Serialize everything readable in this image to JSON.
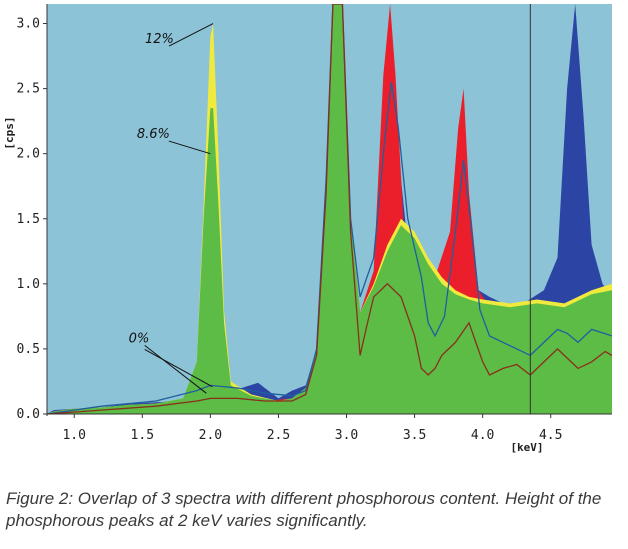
{
  "chart_data": {
    "type": "area",
    "x_unit_label": "[keV]",
    "y_unit_label": "[cps]",
    "xlim": [
      0.8,
      4.95
    ],
    "ylim": [
      0.0,
      3.15
    ],
    "x_ticks": [
      "1.0",
      "1.5",
      "2.0",
      "2.5",
      "3.0",
      "3.5",
      "4.0",
      "4.5"
    ],
    "y_ticks": [
      "0.0",
      "0.5",
      "1.0",
      "1.5",
      "2.0",
      "2.5",
      "3.0"
    ],
    "cursor_x": 4.35,
    "background_color": "#8dc3d6",
    "reference_areas": [
      {
        "color": "#2c44a4",
        "points": [
          [
            0.8,
            0.0
          ],
          [
            0.85,
            0.03
          ],
          [
            1.0,
            0.04
          ],
          [
            1.2,
            0.05
          ],
          [
            1.4,
            0.08
          ],
          [
            1.6,
            0.09
          ],
          [
            1.8,
            0.1
          ],
          [
            1.95,
            0.16
          ],
          [
            2.0,
            0.2
          ],
          [
            2.2,
            0.19
          ],
          [
            2.35,
            0.24
          ],
          [
            2.5,
            0.12
          ],
          [
            2.6,
            0.18
          ],
          [
            2.7,
            0.22
          ],
          [
            2.78,
            0.5
          ],
          [
            2.85,
            1.8
          ],
          [
            2.9,
            3.15
          ],
          [
            2.97,
            3.15
          ],
          [
            3.03,
            1.5
          ],
          [
            3.1,
            0.78
          ],
          [
            3.2,
            0.95
          ],
          [
            3.28,
            1.9
          ],
          [
            3.33,
            2.5
          ],
          [
            3.38,
            2.0
          ],
          [
            3.45,
            1.3
          ],
          [
            3.55,
            1.1
          ],
          [
            3.65,
            1.0
          ],
          [
            3.75,
            1.15
          ],
          [
            3.82,
            2.0
          ],
          [
            3.86,
            2.2
          ],
          [
            3.9,
            1.6
          ],
          [
            3.97,
            0.95
          ],
          [
            4.05,
            0.9
          ],
          [
            4.15,
            0.85
          ],
          [
            4.3,
            0.85
          ],
          [
            4.45,
            0.95
          ],
          [
            4.55,
            1.2
          ],
          [
            4.62,
            2.5
          ],
          [
            4.68,
            3.15
          ],
          [
            4.74,
            2.3
          ],
          [
            4.8,
            1.3
          ],
          [
            4.88,
            1.0
          ],
          [
            4.95,
            0.9
          ]
        ]
      },
      {
        "color": "#ea1f2b",
        "points": [
          [
            0.8,
            0.0
          ],
          [
            0.85,
            0.02
          ],
          [
            1.0,
            0.04
          ],
          [
            1.2,
            0.05
          ],
          [
            1.4,
            0.07
          ],
          [
            1.6,
            0.08
          ],
          [
            1.8,
            0.1
          ],
          [
            1.95,
            0.15
          ],
          [
            2.0,
            0.18
          ],
          [
            2.2,
            0.18
          ],
          [
            2.4,
            0.1
          ],
          [
            2.6,
            0.12
          ],
          [
            2.7,
            0.2
          ],
          [
            2.78,
            0.5
          ],
          [
            2.85,
            1.8
          ],
          [
            2.9,
            3.15
          ],
          [
            2.97,
            3.15
          ],
          [
            3.03,
            1.5
          ],
          [
            3.1,
            0.78
          ],
          [
            3.2,
            1.1
          ],
          [
            3.27,
            2.6
          ],
          [
            3.32,
            3.15
          ],
          [
            3.36,
            2.6
          ],
          [
            3.42,
            1.45
          ],
          [
            3.55,
            1.15
          ],
          [
            3.65,
            1.05
          ],
          [
            3.76,
            1.4
          ],
          [
            3.82,
            2.2
          ],
          [
            3.86,
            2.5
          ],
          [
            3.9,
            1.7
          ],
          [
            3.97,
            0.95
          ],
          [
            4.05,
            0.82
          ],
          [
            4.2,
            0.8
          ],
          [
            4.4,
            0.82
          ],
          [
            4.6,
            0.85
          ],
          [
            4.8,
            0.88
          ],
          [
            4.95,
            0.9
          ]
        ]
      }
    ],
    "series": [
      {
        "name": "12%",
        "color": "#f0ea3e",
        "points": [
          [
            0.8,
            0.0
          ],
          [
            0.85,
            0.02
          ],
          [
            1.0,
            0.04
          ],
          [
            1.2,
            0.05
          ],
          [
            1.4,
            0.07
          ],
          [
            1.6,
            0.08
          ],
          [
            1.8,
            0.12
          ],
          [
            1.9,
            0.4
          ],
          [
            1.95,
            1.6
          ],
          [
            2.0,
            2.9
          ],
          [
            2.02,
            3.0
          ],
          [
            2.06,
            2.0
          ],
          [
            2.1,
            0.8
          ],
          [
            2.15,
            0.25
          ],
          [
            2.3,
            0.15
          ],
          [
            2.5,
            0.1
          ],
          [
            2.6,
            0.12
          ],
          [
            2.7,
            0.2
          ],
          [
            2.78,
            0.5
          ],
          [
            2.85,
            1.8
          ],
          [
            2.9,
            3.15
          ],
          [
            2.97,
            3.15
          ],
          [
            3.03,
            1.5
          ],
          [
            3.1,
            0.78
          ],
          [
            3.2,
            1.0
          ],
          [
            3.3,
            1.3
          ],
          [
            3.4,
            1.5
          ],
          [
            3.5,
            1.4
          ],
          [
            3.6,
            1.2
          ],
          [
            3.7,
            1.05
          ],
          [
            3.8,
            0.95
          ],
          [
            3.9,
            0.9
          ],
          [
            4.0,
            0.88
          ],
          [
            4.2,
            0.85
          ],
          [
            4.4,
            0.88
          ],
          [
            4.6,
            0.85
          ],
          [
            4.8,
            0.95
          ],
          [
            4.95,
            1.0
          ]
        ]
      },
      {
        "name": "8.6%",
        "color": "#5cbc46",
        "points": [
          [
            0.8,
            0.0
          ],
          [
            0.85,
            0.02
          ],
          [
            1.0,
            0.04
          ],
          [
            1.2,
            0.05
          ],
          [
            1.4,
            0.07
          ],
          [
            1.6,
            0.08
          ],
          [
            1.8,
            0.12
          ],
          [
            1.9,
            0.4
          ],
          [
            1.95,
            1.5
          ],
          [
            2.0,
            2.35
          ],
          [
            2.02,
            2.35
          ],
          [
            2.06,
            1.6
          ],
          [
            2.1,
            0.7
          ],
          [
            2.15,
            0.22
          ],
          [
            2.3,
            0.14
          ],
          [
            2.5,
            0.1
          ],
          [
            2.6,
            0.12
          ],
          [
            2.7,
            0.2
          ],
          [
            2.78,
            0.5
          ],
          [
            2.85,
            1.8
          ],
          [
            2.9,
            3.15
          ],
          [
            2.97,
            3.15
          ],
          [
            3.03,
            1.5
          ],
          [
            3.1,
            0.78
          ],
          [
            3.2,
            0.98
          ],
          [
            3.3,
            1.25
          ],
          [
            3.4,
            1.45
          ],
          [
            3.5,
            1.35
          ],
          [
            3.6,
            1.15
          ],
          [
            3.7,
            1.0
          ],
          [
            3.8,
            0.92
          ],
          [
            3.9,
            0.88
          ],
          [
            4.0,
            0.85
          ],
          [
            4.2,
            0.82
          ],
          [
            4.4,
            0.85
          ],
          [
            4.6,
            0.82
          ],
          [
            4.8,
            0.92
          ],
          [
            4.95,
            0.95
          ]
        ]
      }
    ],
    "lines": [
      {
        "color": "#1f5fa0",
        "points": [
          [
            0.8,
            0.0
          ],
          [
            1.2,
            0.06
          ],
          [
            1.6,
            0.1
          ],
          [
            1.9,
            0.18
          ],
          [
            2.0,
            0.22
          ],
          [
            2.2,
            0.2
          ],
          [
            2.4,
            0.16
          ],
          [
            2.6,
            0.14
          ],
          [
            2.7,
            0.18
          ],
          [
            2.78,
            0.5
          ],
          [
            2.85,
            1.8
          ],
          [
            2.9,
            3.15
          ],
          [
            2.97,
            3.15
          ],
          [
            3.03,
            1.5
          ],
          [
            3.1,
            0.9
          ],
          [
            3.2,
            1.2
          ],
          [
            3.28,
            2.1
          ],
          [
            3.33,
            2.55
          ],
          [
            3.38,
            2.2
          ],
          [
            3.45,
            1.5
          ],
          [
            3.55,
            1.05
          ],
          [
            3.6,
            0.7
          ],
          [
            3.65,
            0.6
          ],
          [
            3.72,
            0.75
          ],
          [
            3.8,
            1.4
          ],
          [
            3.86,
            1.95
          ],
          [
            3.92,
            1.4
          ],
          [
            3.98,
            0.8
          ],
          [
            4.05,
            0.6
          ],
          [
            4.15,
            0.55
          ],
          [
            4.25,
            0.5
          ],
          [
            4.35,
            0.45
          ],
          [
            4.45,
            0.55
          ],
          [
            4.55,
            0.65
          ],
          [
            4.62,
            0.62
          ],
          [
            4.7,
            0.55
          ],
          [
            4.8,
            0.65
          ],
          [
            4.95,
            0.6
          ]
        ]
      },
      {
        "color": "#8a2f1c",
        "points": [
          [
            0.8,
            0.0
          ],
          [
            1.2,
            0.03
          ],
          [
            1.6,
            0.06
          ],
          [
            1.9,
            0.1
          ],
          [
            2.0,
            0.12
          ],
          [
            2.2,
            0.12
          ],
          [
            2.4,
            0.1
          ],
          [
            2.6,
            0.1
          ],
          [
            2.7,
            0.15
          ],
          [
            2.78,
            0.45
          ],
          [
            2.85,
            1.7
          ],
          [
            2.9,
            3.15
          ],
          [
            2.97,
            3.15
          ],
          [
            3.03,
            1.4
          ],
          [
            3.1,
            0.45
          ],
          [
            3.15,
            0.68
          ],
          [
            3.2,
            0.9
          ],
          [
            3.3,
            1.0
          ],
          [
            3.4,
            0.9
          ],
          [
            3.5,
            0.6
          ],
          [
            3.55,
            0.35
          ],
          [
            3.6,
            0.3
          ],
          [
            3.65,
            0.35
          ],
          [
            3.7,
            0.45
          ],
          [
            3.8,
            0.55
          ],
          [
            3.9,
            0.7
          ],
          [
            4.0,
            0.4
          ],
          [
            4.05,
            0.3
          ],
          [
            4.15,
            0.35
          ],
          [
            4.25,
            0.38
          ],
          [
            4.35,
            0.3
          ],
          [
            4.45,
            0.4
          ],
          [
            4.55,
            0.5
          ],
          [
            4.6,
            0.45
          ],
          [
            4.7,
            0.35
          ],
          [
            4.8,
            0.4
          ],
          [
            4.9,
            0.48
          ],
          [
            4.95,
            0.45
          ]
        ]
      }
    ],
    "annotations": [
      {
        "text": "12%",
        "x": 1.52,
        "y": 2.85,
        "target": [
          2.02,
          3.0
        ]
      },
      {
        "text": "8.6%",
        "x": 1.46,
        "y": 2.12,
        "target": [
          2.0,
          2.0
        ]
      },
      {
        "text": "0%",
        "x": 1.4,
        "y": 0.55,
        "target": [
          1.97,
          0.16
        ]
      }
    ]
  },
  "caption": "Figure 2: Overlap of 3 spectra with different phosphorous content. Height of the phosphorous peaks at 2 keV varies significantly."
}
